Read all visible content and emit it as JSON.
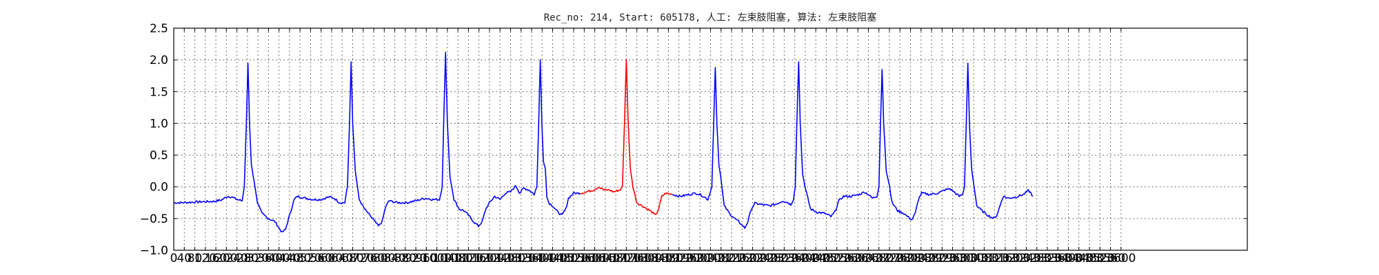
{
  "chart_data": {
    "type": "line",
    "title": "Rec_no: 214, Start: 605178, 人工: 左束肢阻塞, 算法: 左束肢阻塞",
    "xlabel": "",
    "ylabel": "",
    "xlim": [
      0,
      4080
    ],
    "ylim": [
      -1.0,
      2.5
    ],
    "grid": true,
    "x_ticks": [
      0,
      40,
      80,
      120,
      160,
      200,
      240,
      280,
      320,
      360,
      400,
      440,
      480,
      520,
      560,
      600,
      640,
      680,
      720,
      760,
      800,
      840,
      880,
      920,
      960,
      1000,
      1040,
      1080,
      1120,
      1160,
      1200,
      1240,
      1280,
      1320,
      1360,
      1400,
      1440,
      1480,
      1520,
      1560,
      1600,
      1640,
      1680,
      1720,
      1760,
      1800,
      1840,
      1880,
      1920,
      1960,
      2000,
      2040,
      2080,
      2120,
      2160,
      2200,
      2240,
      2280,
      2320,
      2360,
      2400,
      2440,
      2480,
      2520,
      2560,
      2600,
      2640,
      2680,
      2720,
      2760,
      2800,
      2840,
      2880,
      2920,
      2960,
      3000,
      3040,
      3080,
      3120,
      3160,
      3200,
      3240,
      3280,
      3320,
      3360,
      3400,
      3440,
      3480,
      3520,
      3560,
      3600
    ],
    "x_tick_labels": [
      "0",
      "40",
      "80",
      "120",
      "160",
      "200",
      "240",
      "280",
      "320",
      "360",
      "400",
      "440",
      "480",
      "520",
      "560",
      "600",
      "640",
      "680",
      "720",
      "760",
      "800",
      "840",
      "880",
      "920",
      "960",
      "1000",
      "1040",
      "1080",
      "1120",
      "1160",
      "1200",
      "1240",
      "1280",
      "1320",
      "1360",
      "1400",
      "1440",
      "1480",
      "1520",
      "1560",
      "1600",
      "1640",
      "1680",
      "1720",
      "1760",
      "1800",
      "1840",
      "1880",
      "1920",
      "1960",
      "2000",
      "2040",
      "2080",
      "2120",
      "2160",
      "2200",
      "2240",
      "2280",
      "2320",
      "2360",
      "2400",
      "2440",
      "2480",
      "2520",
      "2560",
      "2600",
      "2640",
      "2680",
      "2720",
      "2760",
      "2800",
      "2840",
      "2880",
      "2920",
      "2960",
      "3000",
      "3040",
      "3080",
      "3120",
      "3160",
      "3200",
      "3240",
      "3280",
      "3320",
      "3360",
      "3400",
      "3440",
      "3480",
      "3520",
      "3560",
      "3600"
    ],
    "y_ticks": [
      2.5,
      2.0,
      1.5,
      1.0,
      0.5,
      0.0,
      -0.5,
      -1.0
    ],
    "y_tick_labels": [
      "2.5",
      "2.0",
      "1.5",
      "1.0",
      "0.5",
      "0.0",
      "−0.5",
      "−1.0"
    ],
    "series": [
      {
        "color": "#0000ff",
        "points": [
          [
            0,
            -0.25
          ],
          [
            30,
            -0.25
          ],
          [
            80,
            -0.24
          ],
          [
            150,
            -0.23
          ],
          [
            180,
            -0.21
          ],
          [
            205,
            -0.15
          ],
          [
            220,
            -0.16
          ],
          [
            240,
            -0.2
          ],
          [
            260,
            -0.22
          ],
          [
            268,
            0.0
          ],
          [
            276,
            1.0
          ],
          [
            282,
            1.95
          ],
          [
            288,
            1.0
          ],
          [
            295,
            0.35
          ],
          [
            305,
            0.1
          ],
          [
            318,
            -0.25
          ],
          [
            335,
            -0.42
          ],
          [
            360,
            -0.5
          ],
          [
            385,
            -0.55
          ],
          [
            400,
            -0.65
          ],
          [
            412,
            -0.72
          ],
          [
            425,
            -0.67
          ],
          [
            440,
            -0.45
          ],
          [
            458,
            -0.2
          ],
          [
            470,
            -0.15
          ],
          [
            500,
            -0.18
          ],
          [
            530,
            -0.2
          ],
          [
            560,
            -0.2
          ],
          [
            590,
            -0.16
          ],
          [
            610,
            -0.18
          ],
          [
            630,
            -0.25
          ],
          [
            650,
            -0.25
          ],
          [
            660,
            0.0
          ],
          [
            668,
            1.0
          ],
          [
            674,
            1.97
          ],
          [
            680,
            1.0
          ],
          [
            690,
            0.25
          ],
          [
            705,
            -0.2
          ],
          [
            725,
            -0.35
          ],
          [
            745,
            -0.45
          ],
          [
            765,
            -0.55
          ],
          [
            778,
            -0.62
          ],
          [
            792,
            -0.55
          ],
          [
            805,
            -0.32
          ],
          [
            818,
            -0.22
          ],
          [
            850,
            -0.25
          ],
          [
            885,
            -0.25
          ],
          [
            920,
            -0.22
          ],
          [
            955,
            -0.18
          ],
          [
            985,
            -0.2
          ],
          [
            1010,
            -0.2
          ],
          [
            1020,
            0.0
          ],
          [
            1027,
            1.2
          ],
          [
            1033,
            2.12
          ],
          [
            1040,
            1.0
          ],
          [
            1050,
            0.15
          ],
          [
            1065,
            -0.2
          ],
          [
            1085,
            -0.35
          ],
          [
            1105,
            -0.38
          ],
          [
            1120,
            -0.45
          ],
          [
            1140,
            -0.55
          ],
          [
            1158,
            -0.62
          ],
          [
            1172,
            -0.55
          ],
          [
            1186,
            -0.35
          ],
          [
            1200,
            -0.25
          ],
          [
            1220,
            -0.15
          ],
          [
            1240,
            -0.2
          ],
          [
            1260,
            -0.1
          ],
          [
            1280,
            -0.08
          ],
          [
            1300,
            0.02
          ],
          [
            1315,
            -0.1
          ],
          [
            1330,
            -0.02
          ],
          [
            1350,
            -0.05
          ],
          [
            1370,
            -0.12
          ],
          [
            1380,
            0.0
          ],
          [
            1387,
            1.0
          ],
          [
            1393,
            2.0
          ],
          [
            1399,
            1.0
          ],
          [
            1405,
            0.4
          ],
          [
            1412,
            0.3
          ],
          [
            1418,
            -0.15
          ],
          [
            1425,
            -0.25
          ],
          [
            1440,
            -0.3
          ],
          [
            1455,
            -0.38
          ],
          [
            1475,
            -0.45
          ],
          [
            1490,
            -0.35
          ],
          [
            1500,
            -0.18
          ],
          [
            1520,
            -0.1
          ],
          [
            1545,
            -0.1
          ]
        ],
        "line_id": "trace-1"
      },
      {
        "color": "#ff0000",
        "points": [
          [
            1545,
            -0.1
          ],
          [
            1570,
            -0.08
          ],
          [
            1595,
            -0.05
          ],
          [
            1615,
            0.0
          ],
          [
            1635,
            -0.05
          ],
          [
            1655,
            -0.05
          ],
          [
            1672,
            -0.08
          ],
          [
            1695,
            -0.05
          ],
          [
            1705,
            0.0
          ],
          [
            1713,
            1.0
          ],
          [
            1720,
            2.0
          ],
          [
            1727,
            1.0
          ],
          [
            1735,
            0.3
          ],
          [
            1745,
            0.0
          ],
          [
            1760,
            -0.25
          ],
          [
            1780,
            -0.3
          ],
          [
            1800,
            -0.35
          ],
          [
            1818,
            -0.4
          ],
          [
            1830,
            -0.45
          ],
          [
            1843,
            -0.35
          ],
          [
            1855,
            -0.15
          ],
          [
            1870,
            -0.1
          ],
          [
            1895,
            -0.12
          ]
        ],
        "line_id": "trace-2"
      },
      {
        "color": "#0000ff",
        "points": [
          [
            1895,
            -0.12
          ],
          [
            1925,
            -0.15
          ],
          [
            1960,
            -0.12
          ],
          [
            1985,
            -0.1
          ],
          [
            2005,
            -0.13
          ],
          [
            2030,
            -0.2
          ],
          [
            2045,
            0.0
          ],
          [
            2052,
            1.0
          ],
          [
            2058,
            1.88
          ],
          [
            2064,
            1.0
          ],
          [
            2072,
            0.35
          ],
          [
            2082,
            0.05
          ],
          [
            2092,
            -0.3
          ],
          [
            2112,
            -0.42
          ],
          [
            2132,
            -0.5
          ],
          [
            2155,
            -0.58
          ],
          [
            2170,
            -0.65
          ],
          [
            2182,
            -0.55
          ],
          [
            2195,
            -0.35
          ],
          [
            2208,
            -0.26
          ],
          [
            2235,
            -0.28
          ],
          [
            2265,
            -0.3
          ],
          [
            2290,
            -0.27
          ],
          [
            2315,
            -0.22
          ],
          [
            2335,
            -0.25
          ],
          [
            2345,
            -0.28
          ],
          [
            2355,
            -0.2
          ],
          [
            2362,
            0.0
          ],
          [
            2368,
            1.0
          ],
          [
            2375,
            1.97
          ],
          [
            2381,
            1.0
          ],
          [
            2390,
            0.2
          ],
          [
            2402,
            -0.05
          ],
          [
            2420,
            -0.35
          ],
          [
            2445,
            -0.4
          ],
          [
            2475,
            -0.42
          ],
          [
            2498,
            -0.47
          ],
          [
            2512,
            -0.4
          ],
          [
            2528,
            -0.22
          ],
          [
            2545,
            -0.15
          ],
          [
            2575,
            -0.15
          ],
          [
            2605,
            -0.12
          ],
          [
            2625,
            -0.08
          ],
          [
            2640,
            -0.12
          ],
          [
            2655,
            -0.18
          ],
          [
            2672,
            -0.15
          ],
          [
            2680,
            0.0
          ],
          [
            2686,
            1.0
          ],
          [
            2692,
            1.85
          ],
          [
            2698,
            1.0
          ],
          [
            2708,
            0.25
          ],
          [
            2720,
            0.02
          ],
          [
            2730,
            -0.25
          ],
          [
            2752,
            -0.38
          ],
          [
            2775,
            -0.42
          ],
          [
            2792,
            -0.48
          ],
          [
            2805,
            -0.52
          ],
          [
            2818,
            -0.42
          ],
          [
            2830,
            -0.2
          ],
          [
            2842,
            -0.1
          ],
          [
            2872,
            -0.12
          ],
          [
            2905,
            -0.1
          ],
          [
            2930,
            -0.05
          ],
          [
            2950,
            -0.03
          ],
          [
            2965,
            -0.08
          ],
          [
            2985,
            -0.15
          ],
          [
            2998,
            -0.12
          ],
          [
            3005,
            0.0
          ],
          [
            3012,
            1.0
          ],
          [
            3018,
            1.95
          ],
          [
            3024,
            1.0
          ],
          [
            3032,
            0.3
          ],
          [
            3040,
            0.05
          ],
          [
            3052,
            -0.3
          ],
          [
            3072,
            -0.38
          ],
          [
            3095,
            -0.45
          ],
          [
            3115,
            -0.5
          ],
          [
            3128,
            -0.45
          ],
          [
            3140,
            -0.3
          ],
          [
            3152,
            -0.15
          ],
          [
            3172,
            -0.18
          ],
          [
            3200,
            -0.16
          ],
          [
            3230,
            -0.12
          ],
          [
            3248,
            -0.06
          ],
          [
            3258,
            -0.1
          ],
          [
            3265,
            -0.15
          ]
        ],
        "line_id": "trace-3"
      }
    ]
  }
}
